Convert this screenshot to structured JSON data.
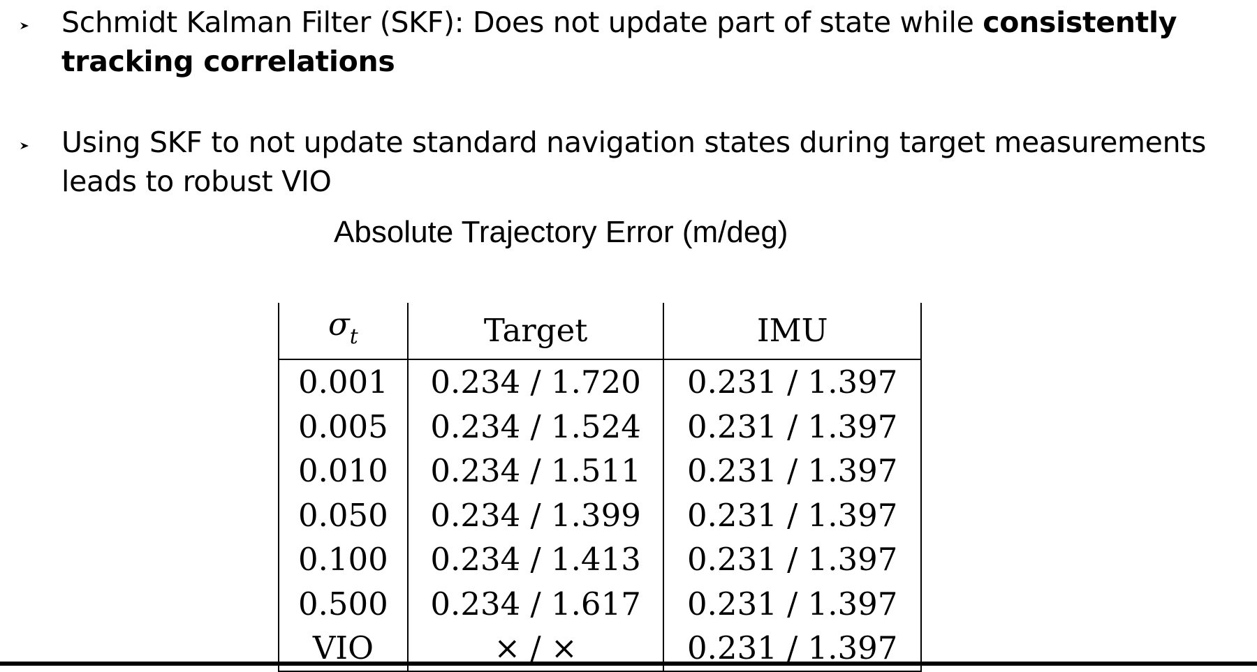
{
  "bullets": [
    {
      "text_normal": "Schmidt Kalman Filter (SKF): Does not update part of state while ",
      "text_bold": "consistently tracking correlations"
    },
    {
      "text_normal": "Using SKF to not update standard navigation states during target measurements leads to robust VIO"
    }
  ],
  "table": {
    "title": "Absolute Trajectory Error (m/deg)",
    "header": {
      "sigma_symbol": "σ",
      "sigma_subscript": "t",
      "target": "Target",
      "imu": "IMU"
    },
    "rows": [
      {
        "sigma": "0.001",
        "target": "0.234 / 1.720",
        "imu": "0.231 / 1.397"
      },
      {
        "sigma": "0.005",
        "target": "0.234 / 1.524",
        "imu": "0.231 / 1.397"
      },
      {
        "sigma": "0.010",
        "target": "0.234 / 1.511",
        "imu": "0.231 / 1.397"
      },
      {
        "sigma": "0.050",
        "target": "0.234 / 1.399",
        "imu": "0.231 / 1.397"
      },
      {
        "sigma": "0.100",
        "target": "0.234 / 1.413",
        "imu": "0.231 / 1.397"
      },
      {
        "sigma": "0.500",
        "target": "0.234 / 1.617",
        "imu": "0.231 / 1.397"
      },
      {
        "sigma": "VIO",
        "target": "× / ×",
        "imu": "0.231 / 1.397"
      }
    ]
  },
  "icons": {
    "bullet_marker": "arrowhead-bullet-icon"
  }
}
